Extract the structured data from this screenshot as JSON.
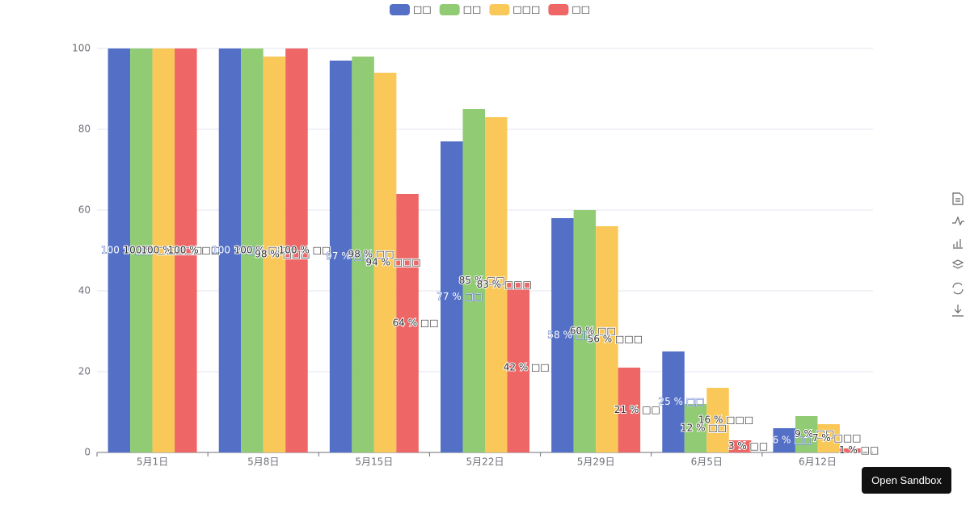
{
  "chart_data": {
    "type": "bar",
    "categories": [
      "5月1日",
      "5月8日",
      "5月15日",
      "5月22日",
      "5月29日",
      "6月5日",
      "6月12日"
    ],
    "series": [
      {
        "name": "□□",
        "color": "#5470c6",
        "values": [
          100,
          100,
          97,
          77,
          58,
          25,
          6
        ],
        "value_labels": [
          "100 % □□",
          "100 % □□",
          "97 % □□",
          "77 % □□",
          "58 % □□",
          "25 % □□",
          "6 % □□"
        ]
      },
      {
        "name": "□□",
        "color": "#91cc75",
        "values": [
          100,
          100,
          98,
          85,
          60,
          12,
          9
        ],
        "value_labels": [
          "100 % □□",
          "100 % □□",
          "98 % □□",
          "85 % □□",
          "60 % □□",
          "12 % □□",
          "9 % □□"
        ]
      },
      {
        "name": "□□□",
        "color": "#fac858",
        "values": [
          100,
          98,
          94,
          83,
          56,
          16,
          7
        ],
        "value_labels": [
          "100 % □□□",
          "98 % □□□",
          "94 % □□□",
          "83 % □□□",
          "56 % □□□",
          "16 % □□□",
          "7 % □□□"
        ]
      },
      {
        "name": "□□",
        "color": "#ee6666",
        "values": [
          100,
          100,
          64,
          42,
          21,
          3,
          1
        ],
        "value_labels": [
          "100 % □□",
          "100 % □□",
          "64 % □□",
          "42 % □□",
          "21 % □□",
          "3 % □□",
          "1 % □□"
        ]
      }
    ],
    "ylim": [
      0,
      100
    ],
    "yticks": [
      0,
      20,
      40,
      60,
      80,
      100
    ],
    "grid": true
  },
  "button": "Open Sandbox"
}
